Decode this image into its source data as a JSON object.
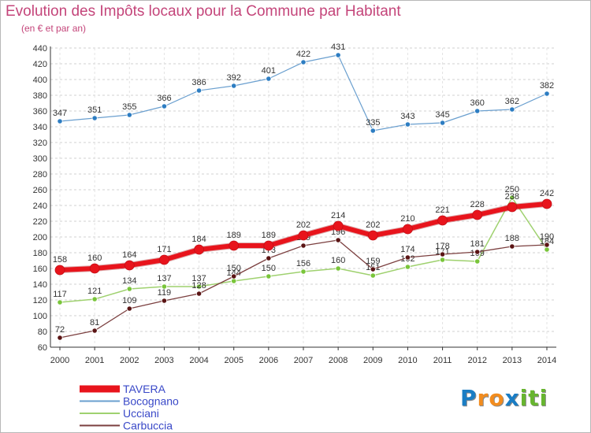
{
  "title": "Evolution des Impôts locaux pour la Commune par Habitant",
  "subtitle": "(en € et par an)",
  "logo": {
    "letters": [
      "P",
      "r",
      "o",
      "x",
      "i",
      "t",
      "i"
    ],
    "colors": [
      "#1a7dc4",
      "#f28c1e",
      "#f28c1e",
      "#1a7dc4",
      "#67b52f",
      "#67b52f",
      "#67b52f"
    ]
  },
  "chart_data": {
    "type": "line",
    "title": "Evolution des Impôts locaux pour la Commune par Habitant",
    "subtitle": "(en € et par an)",
    "x": [
      "2000",
      "2001",
      "2002",
      "2003",
      "2004",
      "2005",
      "2006",
      "2007",
      "2008",
      "2009",
      "2010",
      "2011",
      "2012",
      "2013",
      "2014"
    ],
    "ylim": [
      60,
      440
    ],
    "yticks": [
      60,
      80,
      100,
      120,
      140,
      160,
      180,
      200,
      220,
      240,
      260,
      280,
      300,
      320,
      340,
      360,
      380,
      400,
      420,
      440
    ],
    "grid": true,
    "legend_position": "bottom-left",
    "series": [
      {
        "name": "Bocognano",
        "color": "#6a9fcf",
        "marker_color": "#2d7dc2",
        "width": 1.2,
        "marker_r": 3.2,
        "values": [
          347,
          351,
          355,
          366,
          386,
          392,
          401,
          422,
          431,
          335,
          343,
          345,
          360,
          362,
          382
        ],
        "labels": [
          "347",
          "351",
          "355",
          "366",
          "386",
          "392",
          "401",
          "422",
          "431",
          "335",
          "343",
          "345",
          "360",
          "362",
          "382"
        ]
      },
      {
        "name": "Ucciani",
        "color": "#9fd16f",
        "marker_color": "#79c53a",
        "width": 1.5,
        "marker_r": 3.2,
        "values": [
          117,
          121,
          134,
          137,
          137,
          144,
          150,
          156,
          160,
          151,
          162,
          171,
          169,
          250,
          184
        ],
        "labels": [
          "117",
          "121",
          "134",
          "137",
          "137",
          "144",
          "150",
          "156",
          "160",
          "151",
          "162",
          "171",
          "169",
          "250",
          "184"
        ]
      },
      {
        "name": "Carbuccia",
        "color": "#7b3f3f",
        "marker_color": "#5a1414",
        "width": 1.3,
        "marker_r": 3.2,
        "values": [
          72,
          81,
          109,
          119,
          128,
          150,
          173,
          189,
          196,
          159,
          174,
          178,
          181,
          188,
          190
        ],
        "labels": [
          "72",
          "81",
          "109",
          "119",
          "128",
          "150",
          "173",
          "189",
          "196",
          "159",
          "174",
          "178",
          "181",
          "188",
          "190"
        ]
      },
      {
        "name": "TAVERA",
        "color": "#e8141c",
        "marker_color": "#e8141c",
        "width": 6,
        "marker_r": 6,
        "values": [
          158,
          160,
          164,
          171,
          184,
          189,
          189,
          202,
          214,
          202,
          210,
          221,
          228,
          238,
          242
        ],
        "labels": [
          "158",
          "160",
          "164",
          "171",
          "184",
          "189",
          "189",
          "202",
          "214",
          "202",
          "210",
          "221",
          "228",
          "238",
          "242"
        ]
      }
    ],
    "legend": [
      {
        "name": "TAVERA",
        "color": "#e8141c",
        "thick": true
      },
      {
        "name": "Bocognano",
        "color": "#6a9fcf",
        "thick": false
      },
      {
        "name": "Ucciani",
        "color": "#9fd16f",
        "thick": false
      },
      {
        "name": "Carbuccia",
        "color": "#7b3f3f",
        "thick": false
      }
    ]
  }
}
